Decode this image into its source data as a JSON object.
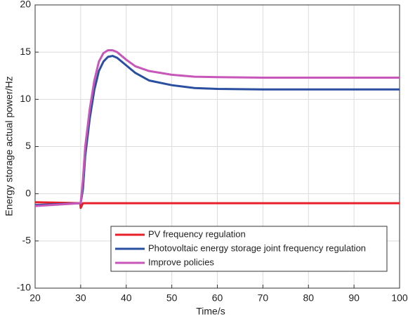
{
  "chart_data": {
    "type": "line",
    "x_label": "Time/s",
    "y_label": "Energy storage actual power/Hz",
    "x": [
      20,
      25,
      29.9,
      30,
      30.5,
      31,
      32,
      33,
      34,
      35,
      36,
      37,
      38,
      40,
      42,
      45,
      50,
      55,
      60,
      70,
      80,
      90,
      100
    ],
    "series": [
      {
        "name": "PV frequency regulation",
        "color": "#e8202a",
        "values": [
          -0.9,
          -0.95,
          -1.0,
          -1.5,
          -1.0,
          -1.0,
          -1.0,
          -1.0,
          -1.0,
          -1.0,
          -1.0,
          -1.0,
          -1.0,
          -1.0,
          -1.0,
          -1.0,
          -1.0,
          -1.0,
          -1.0,
          -1.0,
          -1.0,
          -1.0,
          -1.0
        ]
      },
      {
        "name": "Photovoltaic energy storage joint frequency regulation",
        "color": "#2a4fa0",
        "values": [
          -1.2,
          -1.1,
          -1.0,
          -1.0,
          0.5,
          4,
          8,
          11,
          13,
          14,
          14.5,
          14.6,
          14.4,
          13.6,
          12.8,
          12,
          11.5,
          11.2,
          11.1,
          11.05,
          11.05,
          11.05,
          11.05
        ]
      },
      {
        "name": "Improve policies",
        "color": "#c757b8",
        "values": [
          -1.3,
          -1.15,
          -1.0,
          -1.0,
          1.5,
          5,
          9,
          12,
          14,
          14.9,
          15.2,
          15.2,
          15,
          14.2,
          13.5,
          13,
          12.6,
          12.4,
          12.35,
          12.3,
          12.3,
          12.3,
          12.3
        ]
      }
    ],
    "xlim": [
      20,
      100
    ],
    "xticks": [
      20,
      30,
      40,
      50,
      60,
      70,
      80,
      90,
      100
    ],
    "ylim": [
      -10,
      20
    ],
    "yticks": [
      -10,
      -5,
      0,
      5,
      10,
      15,
      20
    ],
    "grid": true,
    "legend": "lower-left"
  }
}
